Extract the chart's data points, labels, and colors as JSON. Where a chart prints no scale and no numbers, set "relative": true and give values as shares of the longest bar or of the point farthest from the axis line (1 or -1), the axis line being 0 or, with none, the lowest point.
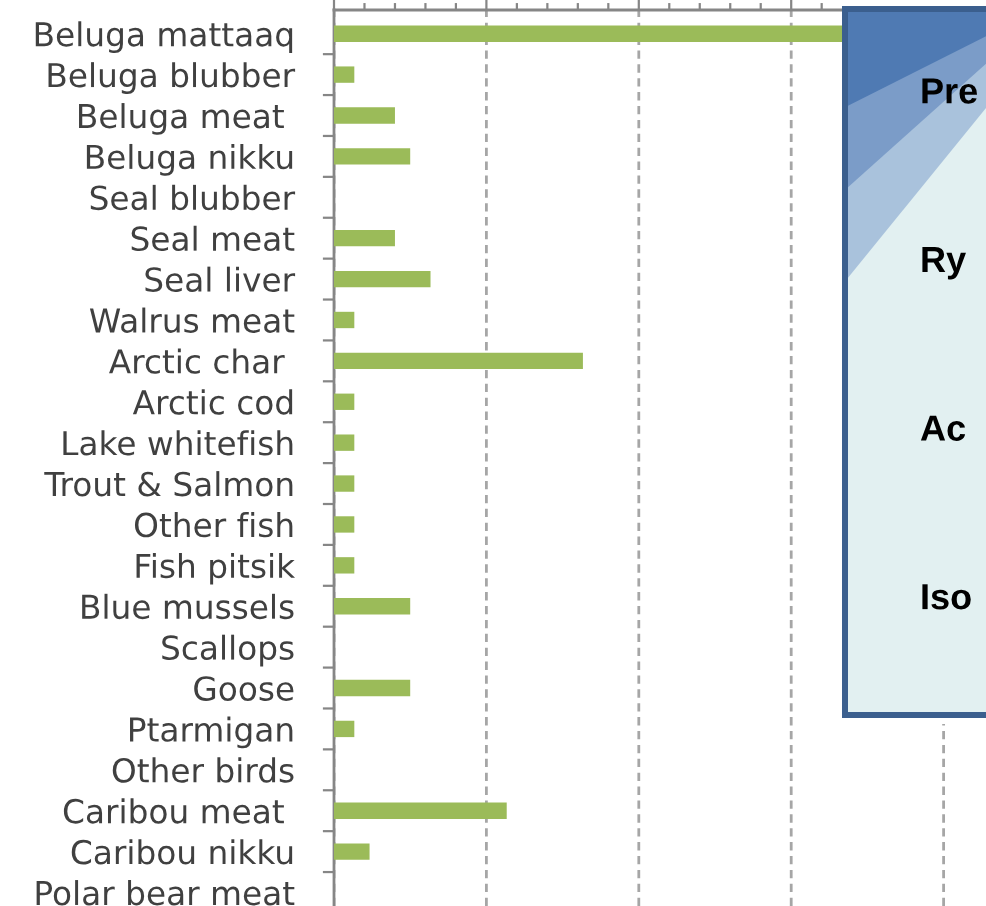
{
  "chart_data": {
    "type": "bar",
    "orientation": "horizontal",
    "relative": true,
    "tick_labels": "y",
    "grid": "x",
    "color": "#9bbb59",
    "categories": [
      "Beluga mattaaq",
      "Beluga blubber",
      "Beluga meat ",
      "Beluga nikku",
      "Seal blubber",
      "Seal meat",
      "Seal liver",
      "Walrus meat",
      "Arctic char ",
      "Arctic cod",
      "Lake whitefish",
      "Trout & Salmon",
      "Other fish",
      "Fish pitsik",
      "Blue mussels",
      "Scallops",
      "Goose",
      "Ptarmigan",
      "Other birds",
      "Caribou meat ",
      "Caribou nikku",
      "Polar bear meat"
    ],
    "values": [
      1,
      0.04,
      0.12,
      0.15,
      0,
      0.12,
      0.19,
      0.04,
      0.49,
      0.04,
      0.04,
      0.04,
      0.04,
      0.04,
      0.15,
      0,
      0.15,
      0.04,
      0,
      0.34,
      0.07,
      0
    ],
    "annotations": [
      "Pre",
      "Ry",
      "Ac",
      "Iso"
    ]
  }
}
